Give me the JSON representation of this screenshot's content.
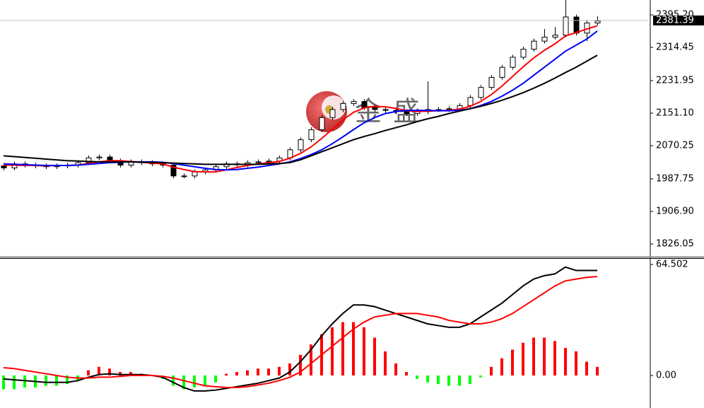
{
  "chart_data": [
    {
      "type": "candlestick",
      "watermark": "金盛",
      "open": [
        2020,
        2015,
        2025,
        2022,
        2020,
        2018,
        2020,
        2022,
        2028,
        2040,
        2042,
        2032,
        2022,
        2030,
        2028,
        2025,
        2022,
        1995,
        1995,
        2005,
        2010,
        2018,
        2025,
        2023,
        2028,
        2030,
        2032,
        2040,
        2060,
        2085,
        2110,
        2140,
        2160,
        2175,
        2180,
        2165,
        2160,
        2158,
        2155,
        2150,
        2155,
        2160,
        2160,
        2162,
        2170,
        2190,
        2215,
        2240,
        2265,
        2290,
        2310,
        2330,
        2340,
        2345,
        2390,
        2350,
        2375
      ],
      "high": [
        2026,
        2031,
        2031,
        2028,
        2026,
        2026,
        2028,
        2034,
        2046,
        2048,
        2048,
        2038,
        2036,
        2036,
        2034,
        2031,
        2028,
        2001,
        2011,
        2016,
        2024,
        2031,
        2031,
        2034,
        2036,
        2038,
        2046,
        2066,
        2091,
        2116,
        2146,
        2166,
        2181,
        2186,
        2186,
        2171,
        2166,
        2164,
        2161,
        2161,
        2230,
        2166,
        2168,
        2176,
        2196,
        2221,
        2246,
        2271,
        2296,
        2316,
        2336,
        2360,
        2365,
        2440,
        2396,
        2381,
        2392
      ],
      "low": [
        2009,
        2009,
        2016,
        2014,
        2012,
        2012,
        2014,
        2016,
        2022,
        2034,
        2026,
        2016,
        2016,
        2022,
        2019,
        2016,
        1989,
        1989,
        1989,
        1999,
        2004,
        2012,
        2017,
        2017,
        2022,
        2024,
        2026,
        2034,
        2054,
        2079,
        2104,
        2134,
        2154,
        2169,
        2159,
        2154,
        2152,
        2149,
        2144,
        2144,
        2149,
        2154,
        2154,
        2156,
        2164,
        2184,
        2209,
        2234,
        2259,
        2284,
        2304,
        2324,
        2334,
        2339,
        2344,
        2330,
        2369
      ],
      "close": [
        2015,
        2025,
        2022,
        2020,
        2018,
        2020,
        2022,
        2028,
        2040,
        2042,
        2032,
        2022,
        2030,
        2028,
        2025,
        2022,
        1995,
        1995,
        2005,
        2010,
        2018,
        2025,
        2023,
        2028,
        2030,
        2032,
        2040,
        2060,
        2085,
        2110,
        2140,
        2160,
        2175,
        2180,
        2165,
        2160,
        2158,
        2155,
        2150,
        2155,
        2160,
        2160,
        2162,
        2170,
        2190,
        2215,
        2240,
        2265,
        2290,
        2310,
        2330,
        2340,
        2345,
        2390,
        2350,
        2375,
        2380
      ],
      "up_color": "#ffffff",
      "down_color": "#000000",
      "series": [
        {
          "color": "#ff0000",
          "values": [
            2022,
            2022,
            2021,
            2021,
            2020,
            2021,
            2021,
            2022,
            2026,
            2030,
            2033,
            2033,
            2031,
            2029,
            2027,
            2025,
            2017,
            2011,
            2006,
            2005,
            2005,
            2010,
            2016,
            2021,
            2025,
            2028,
            2031,
            2039,
            2051,
            2067,
            2088,
            2111,
            2134,
            2153,
            2164,
            2168,
            2167,
            2163,
            2157,
            2155,
            2156,
            2157,
            2158,
            2161,
            2168,
            2180,
            2197,
            2218,
            2242,
            2266,
            2288,
            2307,
            2323,
            2343,
            2351,
            2360,
            2368
          ]
        },
        {
          "color": "#0000ff",
          "values": [
            2025,
            2024,
            2023,
            2022,
            2021,
            2021,
            2021,
            2022,
            2024,
            2026,
            2028,
            2029,
            2030,
            2030,
            2030,
            2029,
            2026,
            2022,
            2018,
            2014,
            2011,
            2010,
            2011,
            2014,
            2017,
            2021,
            2025,
            2030,
            2038,
            2048,
            2060,
            2075,
            2092,
            2110,
            2127,
            2140,
            2150,
            2155,
            2158,
            2158,
            2158,
            2157,
            2157,
            2158,
            2162,
            2170,
            2180,
            2193,
            2208,
            2225,
            2245,
            2265,
            2285,
            2305,
            2320,
            2335,
            2355
          ]
        },
        {
          "color": "#000000",
          "values": [
            2045,
            2043,
            2041,
            2039,
            2037,
            2035,
            2033,
            2032,
            2031,
            2030,
            2030,
            2030,
            2030,
            2029,
            2029,
            2028,
            2027,
            2026,
            2025,
            2024,
            2024,
            2024,
            2024,
            2024,
            2024,
            2025,
            2026,
            2028,
            2035,
            2045,
            2055,
            2065,
            2075,
            2085,
            2093,
            2100,
            2108,
            2115,
            2122,
            2130,
            2137,
            2143,
            2150,
            2156,
            2162,
            2168,
            2175,
            2183,
            2192,
            2202,
            2213,
            2225,
            2238,
            2252,
            2265,
            2280,
            2295
          ]
        }
      ],
      "ylim": [
        1796.2,
        2432.2
      ],
      "yticks": [
        {
          "value": 2395.2,
          "label": "2395.20"
        },
        2314.45,
        2231.95,
        {
          "value": 2151.1,
          "label": "2151.10"
        },
        2070.25,
        1987.75,
        {
          "value": 1906.9,
          "label": "1906.90"
        },
        1826.05
      ],
      "current_price": 2381.39
    },
    {
      "type": "macd",
      "histogram": {
        "up_color": "#ff0000",
        "down_color": "#00ff00",
        "values": [
          -8,
          -8,
          -7,
          -7,
          -6,
          -6,
          -5,
          -3,
          3,
          5,
          4,
          2,
          2,
          1,
          0,
          -2,
          -6,
          -8,
          -7,
          -6,
          -4,
          1,
          2,
          3,
          4,
          4,
          5,
          7,
          12,
          18,
          24,
          28,
          31,
          31,
          28,
          22,
          14,
          7,
          2,
          -2,
          -4,
          -5,
          -6,
          -6,
          -5,
          -1,
          5,
          10,
          15,
          19,
          22,
          22,
          20,
          16,
          14,
          8,
          5
        ]
      },
      "series": [
        {
          "color": "#000000",
          "values": [
            -2,
            -2.5,
            -3,
            -3.5,
            -4,
            -4,
            -4,
            -3,
            -1,
            0.5,
            1,
            0.5,
            0.5,
            0.5,
            0,
            -1,
            -4,
            -7,
            -9,
            -9,
            -8.5,
            -7.5,
            -6.5,
            -5.5,
            -4.5,
            -3,
            -1.5,
            2,
            8,
            15,
            23,
            30,
            36,
            41,
            41,
            40,
            38,
            36,
            34,
            32,
            30,
            29,
            28,
            28,
            30,
            34,
            38,
            42,
            47,
            52,
            56,
            58,
            59,
            63,
            61,
            61,
            61
          ]
        },
        {
          "color": "#ff0000",
          "values": [
            4.5,
            4,
            3,
            2,
            1,
            0,
            -1,
            -1.5,
            -1.5,
            -1,
            -1,
            -0.5,
            0,
            0,
            0,
            -0.5,
            -1.5,
            -3,
            -4.5,
            -6,
            -6.5,
            -7,
            -7,
            -6.5,
            -5.5,
            -4.5,
            -3,
            -1,
            2,
            7,
            12,
            17,
            22,
            27,
            31,
            34,
            35,
            36,
            36,
            36,
            35,
            34,
            32,
            31,
            30,
            30,
            31,
            33,
            36,
            40,
            44,
            48,
            52,
            55,
            56,
            57,
            57.5
          ]
        }
      ],
      "ylim": [
        -18.9,
        67.8
      ],
      "yticks": [
        64.502,
        {
          "value": 0,
          "label": "0.00"
        }
      ]
    }
  ]
}
